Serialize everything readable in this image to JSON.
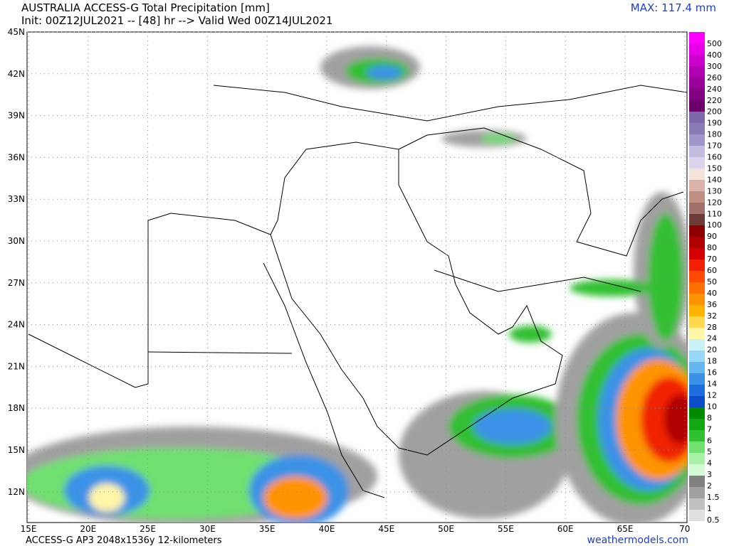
{
  "header": {
    "title": "AUSTRALIA ACCESS-G Total Precipitation [mm]",
    "subtitle": "Init: 00Z12JUL2021 -- [48] hr --> Valid Wed 00Z14JUL2021",
    "max": "MAX: 117.4 mm"
  },
  "map": {
    "lat_labels": [
      "45N",
      "42N",
      "39N",
      "36N",
      "33N",
      "30N",
      "27N",
      "24N",
      "21N",
      "18N",
      "15N",
      "12N"
    ],
    "lon_labels": [
      "15E",
      "20E",
      "25E",
      "30E",
      "35E",
      "40E",
      "45E",
      "50E",
      "55E",
      "60E",
      "65E",
      "70"
    ]
  },
  "colorbar": {
    "labels": [
      "500",
      "400",
      "300",
      "260",
      "240",
      "220",
      "200",
      "190",
      "180",
      "170",
      "160",
      "150",
      "140",
      "130",
      "120",
      "110",
      "100",
      "90",
      "80",
      "70",
      "60",
      "50",
      "40",
      "36",
      "32",
      "28",
      "24",
      "20",
      "18",
      "16",
      "14",
      "12",
      "10",
      "8",
      "7",
      "6",
      "5",
      "4",
      "3",
      "2",
      "1.5",
      "1",
      "0.5"
    ],
    "colors": [
      "#ff00ff",
      "#e600e6",
      "#cc00cc",
      "#b000b0",
      "#990099",
      "#800080",
      "#6a006a",
      "#7b68a8",
      "#8b7bb5",
      "#a095c8",
      "#c4bce0",
      "#dcd4ec",
      "#f5e2da",
      "#dcb3a8",
      "#c08f84",
      "#a0706a",
      "#6e3c36",
      "#8c0000",
      "#b00000",
      "#d40000",
      "#f02000",
      "#ff4a00",
      "#ff7000",
      "#ff9400",
      "#ffb400",
      "#ffd850",
      "#fff6a8",
      "#c8f2f8",
      "#98d8f8",
      "#64b8f0",
      "#3a92e6",
      "#1f6ee0",
      "#0c4ec8",
      "#008a00",
      "#10a810",
      "#30c030",
      "#70e070",
      "#a8f0a8",
      "#d4fcd4",
      "#808080",
      "#a0a0a0",
      "#c0c0c0",
      "#e0e0e0"
    ]
  },
  "footer": {
    "model": "ACCESS-G AP3 2048x1536y 12-kilometers",
    "site": "weathermodels.com"
  }
}
